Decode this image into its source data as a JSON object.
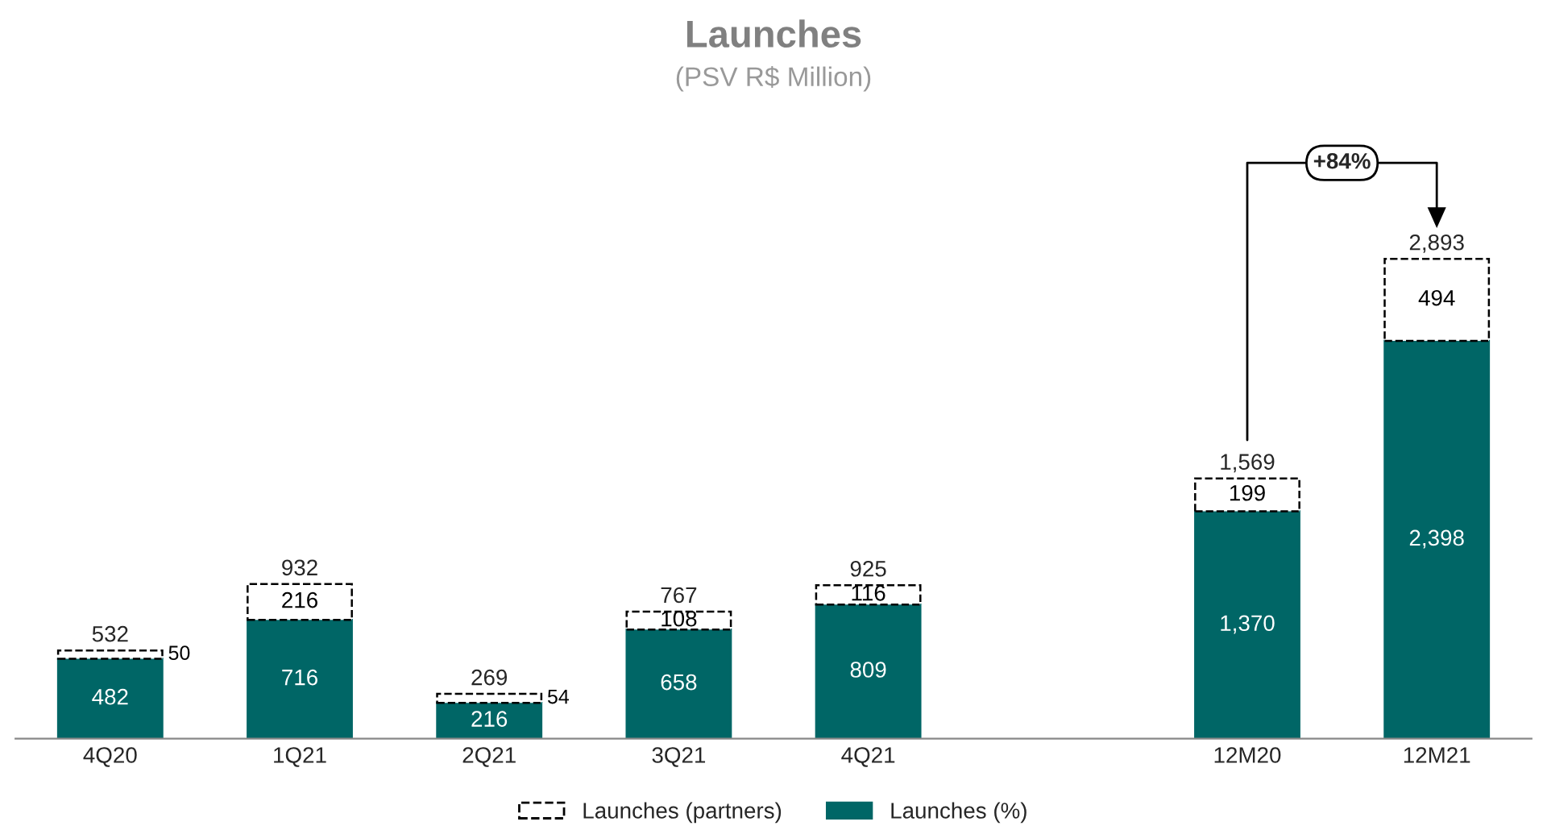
{
  "chart_data": {
    "type": "bar",
    "title": "Launches",
    "subtitle": "(PSV R$ Million)",
    "categories": [
      "4Q20",
      "1Q21",
      "2Q21",
      "3Q21",
      "4Q21",
      null,
      "12M20",
      "12M21"
    ],
    "stacked": true,
    "series": [
      {
        "name": "Launches (%)",
        "color": "#006666",
        "values": [
          482,
          716,
          216,
          658,
          809,
          null,
          1370,
          2398
        ],
        "value_labels": [
          "482",
          "716",
          "216",
          "658",
          "809",
          null,
          "1,370",
          "2,398"
        ]
      },
      {
        "name": "Launches (partners)",
        "color": "#ffffff",
        "line_style": "dashed",
        "values": [
          50,
          216,
          54,
          108,
          116,
          null,
          199,
          494
        ],
        "value_labels": [
          "50",
          "216",
          "54",
          "108",
          "116",
          null,
          "199",
          "494"
        ]
      }
    ],
    "totals": [
      "532",
      "932",
      "269",
      "767",
      "925",
      null,
      "1,569",
      "2,893"
    ],
    "annotations": [
      "+84%"
    ],
    "legend": "bottom",
    "tick_labels": "x",
    "grid": false
  }
}
